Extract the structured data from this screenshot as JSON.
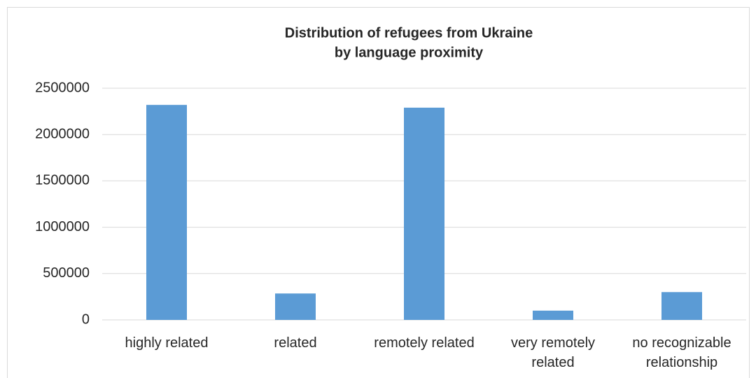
{
  "chart_data": {
    "type": "bar",
    "title": [
      "Distribution of refugees from Ukraine",
      "by language proximity"
    ],
    "categories": [
      "highly related",
      "related",
      "remotely related",
      "very remotely related",
      "no recognizable relationship"
    ],
    "values": [
      2320000,
      285000,
      2290000,
      100000,
      300000
    ],
    "color": "#5b9bd5",
    "ylim": [
      0,
      2500000
    ],
    "yticks": [
      0,
      500000,
      1000000,
      1500000,
      2000000,
      2500000
    ],
    "grid": true
  }
}
